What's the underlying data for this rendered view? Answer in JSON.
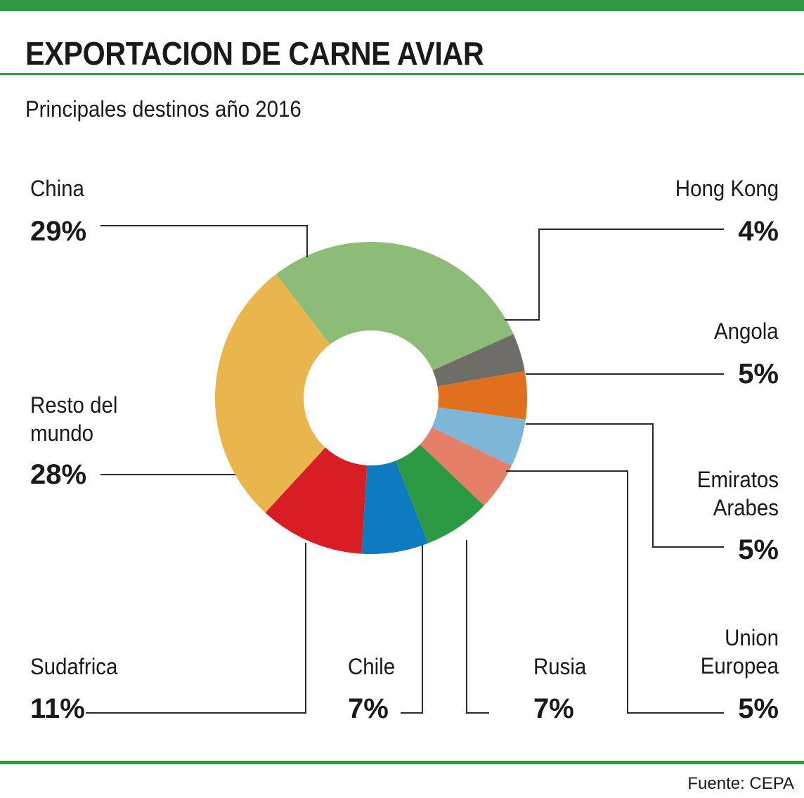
{
  "header": {
    "title": "EXPORTACION DE CARNE AVIAR",
    "subtitle": "Principales destinos año 2016"
  },
  "footer": {
    "source": "Fuente: CEPA"
  },
  "chart_data": {
    "type": "pie",
    "title": "EXPORTACION DE CARNE AVIAR",
    "subtitle": "Principales destinos año 2016",
    "donut": true,
    "legend": "none",
    "slices": [
      {
        "label": "China",
        "value": 29,
        "value_label": "29%",
        "color": "#8dbb78"
      },
      {
        "label": "Hong Kong",
        "value": 4,
        "value_label": "4%",
        "color": "#6f6d68"
      },
      {
        "label": "Angola",
        "value": 5,
        "value_label": "5%",
        "color": "#e06f1e"
      },
      {
        "label": "Emiratos Arabes",
        "value": 5,
        "value_label": "5%",
        "color": "#7eb6d8"
      },
      {
        "label": "Union Europea",
        "value": 5,
        "value_label": "5%",
        "color": "#e57f68"
      },
      {
        "label": "Rusia",
        "value": 7,
        "value_label": "7%",
        "color": "#2b9a42"
      },
      {
        "label": "Chile",
        "value": 7,
        "value_label": "7%",
        "color": "#0e7abf"
      },
      {
        "label": "Sudafrica",
        "value": 11,
        "value_label": "11%",
        "color": "#d81e24"
      },
      {
        "label": "Resto del mundo",
        "value": 28,
        "value_label": "28%",
        "color": "#e8b64c"
      }
    ]
  }
}
